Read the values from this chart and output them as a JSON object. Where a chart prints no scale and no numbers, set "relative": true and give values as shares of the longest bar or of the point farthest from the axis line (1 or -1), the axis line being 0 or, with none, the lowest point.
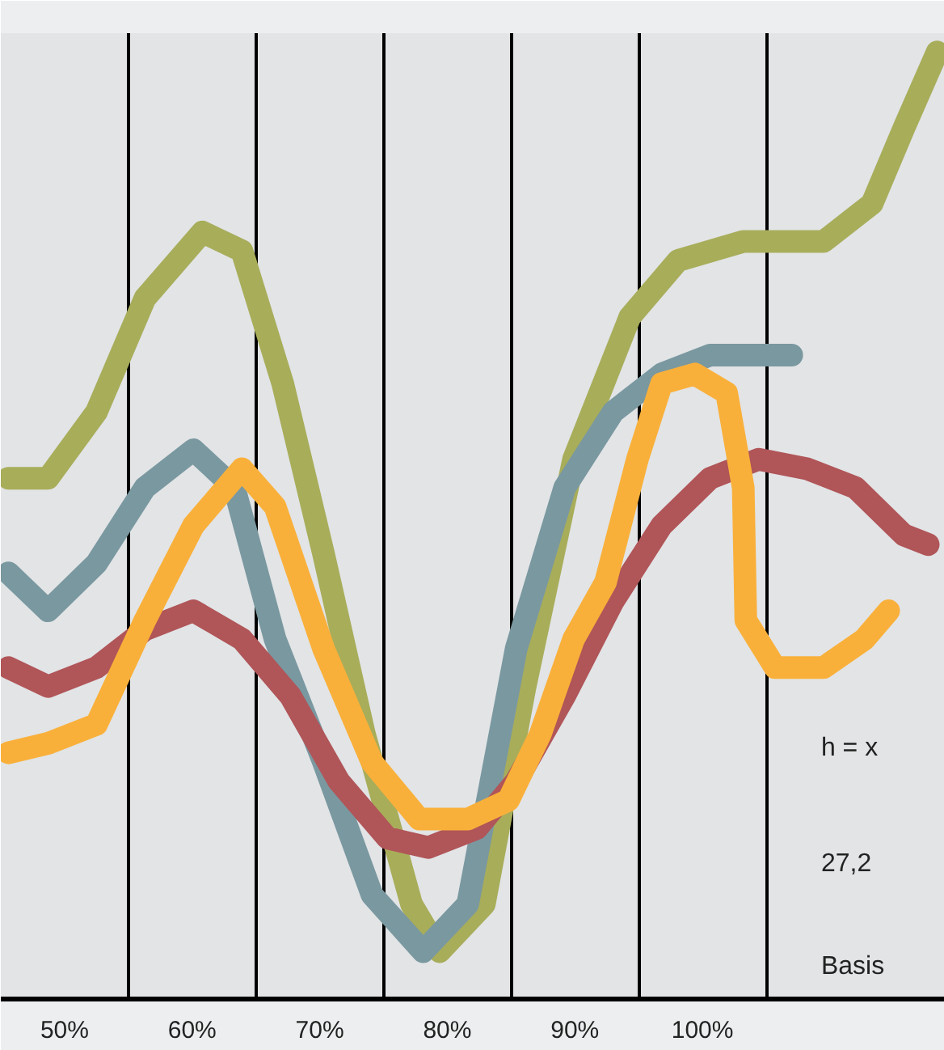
{
  "chart_data": {
    "type": "line",
    "relative": true,
    "xlim": [
      45,
      119
    ],
    "xticks": [
      {
        "value": 50,
        "label": "50%"
      },
      {
        "value": 55,
        "label": null
      },
      {
        "value": 60,
        "label": "60%"
      },
      {
        "value": 65,
        "label": null
      },
      {
        "value": 70,
        "label": "70%"
      },
      {
        "value": 75,
        "label": null
      },
      {
        "value": 80,
        "label": "80%"
      },
      {
        "value": 85,
        "label": null
      },
      {
        "value": 90,
        "label": "90%"
      },
      {
        "value": 95,
        "label": null
      },
      {
        "value": 100,
        "label": "100%"
      },
      {
        "value": 105,
        "label": null
      }
    ],
    "grid": "x",
    "line_style": "solid",
    "annotations": [
      "h = x",
      "27,2",
      "Basis"
    ],
    "series": [
      {
        "color": "#a8ad5a",
        "x": [
          45.6,
          48.7,
          52.5,
          56.3,
          60.8,
          63.9,
          67.1,
          70.3,
          73.5,
          77.2,
          79.4,
          82.9,
          86.1,
          89.9,
          94.3,
          98.1,
          103.2,
          109.5,
          113.3,
          115.8,
          118.4
        ],
        "values": [
          0.55,
          0.55,
          0.62,
          0.74,
          0.81,
          0.79,
          0.65,
          0.47,
          0.28,
          0.1,
          0.05,
          0.1,
          0.33,
          0.57,
          0.72,
          0.78,
          0.8,
          0.8,
          0.84,
          0.92,
          1.0
        ]
      },
      {
        "color": "#7a98a0",
        "x": [
          45.6,
          48.7,
          52.5,
          56.3,
          60.1,
          63.3,
          66.5,
          70.3,
          74.1,
          78.1,
          81.6,
          85.4,
          89.2,
          93.0,
          96.8,
          100.6,
          107.0
        ],
        "values": [
          0.45,
          0.41,
          0.46,
          0.54,
          0.58,
          0.54,
          0.38,
          0.25,
          0.11,
          0.05,
          0.1,
          0.37,
          0.54,
          0.62,
          0.66,
          0.68,
          0.68
        ]
      },
      {
        "color": "#b05558",
        "x": [
          45.6,
          48.7,
          52.5,
          56.3,
          60.1,
          63.9,
          67.7,
          71.5,
          75.3,
          78.5,
          82.3,
          85.4,
          89.2,
          93.0,
          96.8,
          100.6,
          104.4,
          108.2,
          112.0,
          115.8,
          117.7
        ],
        "values": [
          0.35,
          0.33,
          0.35,
          0.39,
          0.41,
          0.38,
          0.32,
          0.23,
          0.17,
          0.16,
          0.18,
          0.23,
          0.32,
          0.42,
          0.5,
          0.55,
          0.57,
          0.56,
          0.54,
          0.49,
          0.48
        ]
      },
      {
        "color": "#f9b03a",
        "x": [
          45.6,
          48.7,
          52.5,
          56.3,
          60.1,
          63.9,
          66.5,
          70.3,
          74.1,
          77.8,
          81.6,
          84.8,
          87.3,
          89.9,
          92.4,
          94.9,
          96.8,
          99.4,
          101.9,
          103.2,
          103.4,
          105.7,
          109.5,
          112.7,
          114.6
        ],
        "values": [
          0.26,
          0.27,
          0.29,
          0.4,
          0.5,
          0.56,
          0.52,
          0.37,
          0.25,
          0.19,
          0.19,
          0.21,
          0.28,
          0.38,
          0.44,
          0.57,
          0.65,
          0.66,
          0.64,
          0.54,
          0.4,
          0.35,
          0.35,
          0.38,
          0.41
        ]
      }
    ]
  }
}
